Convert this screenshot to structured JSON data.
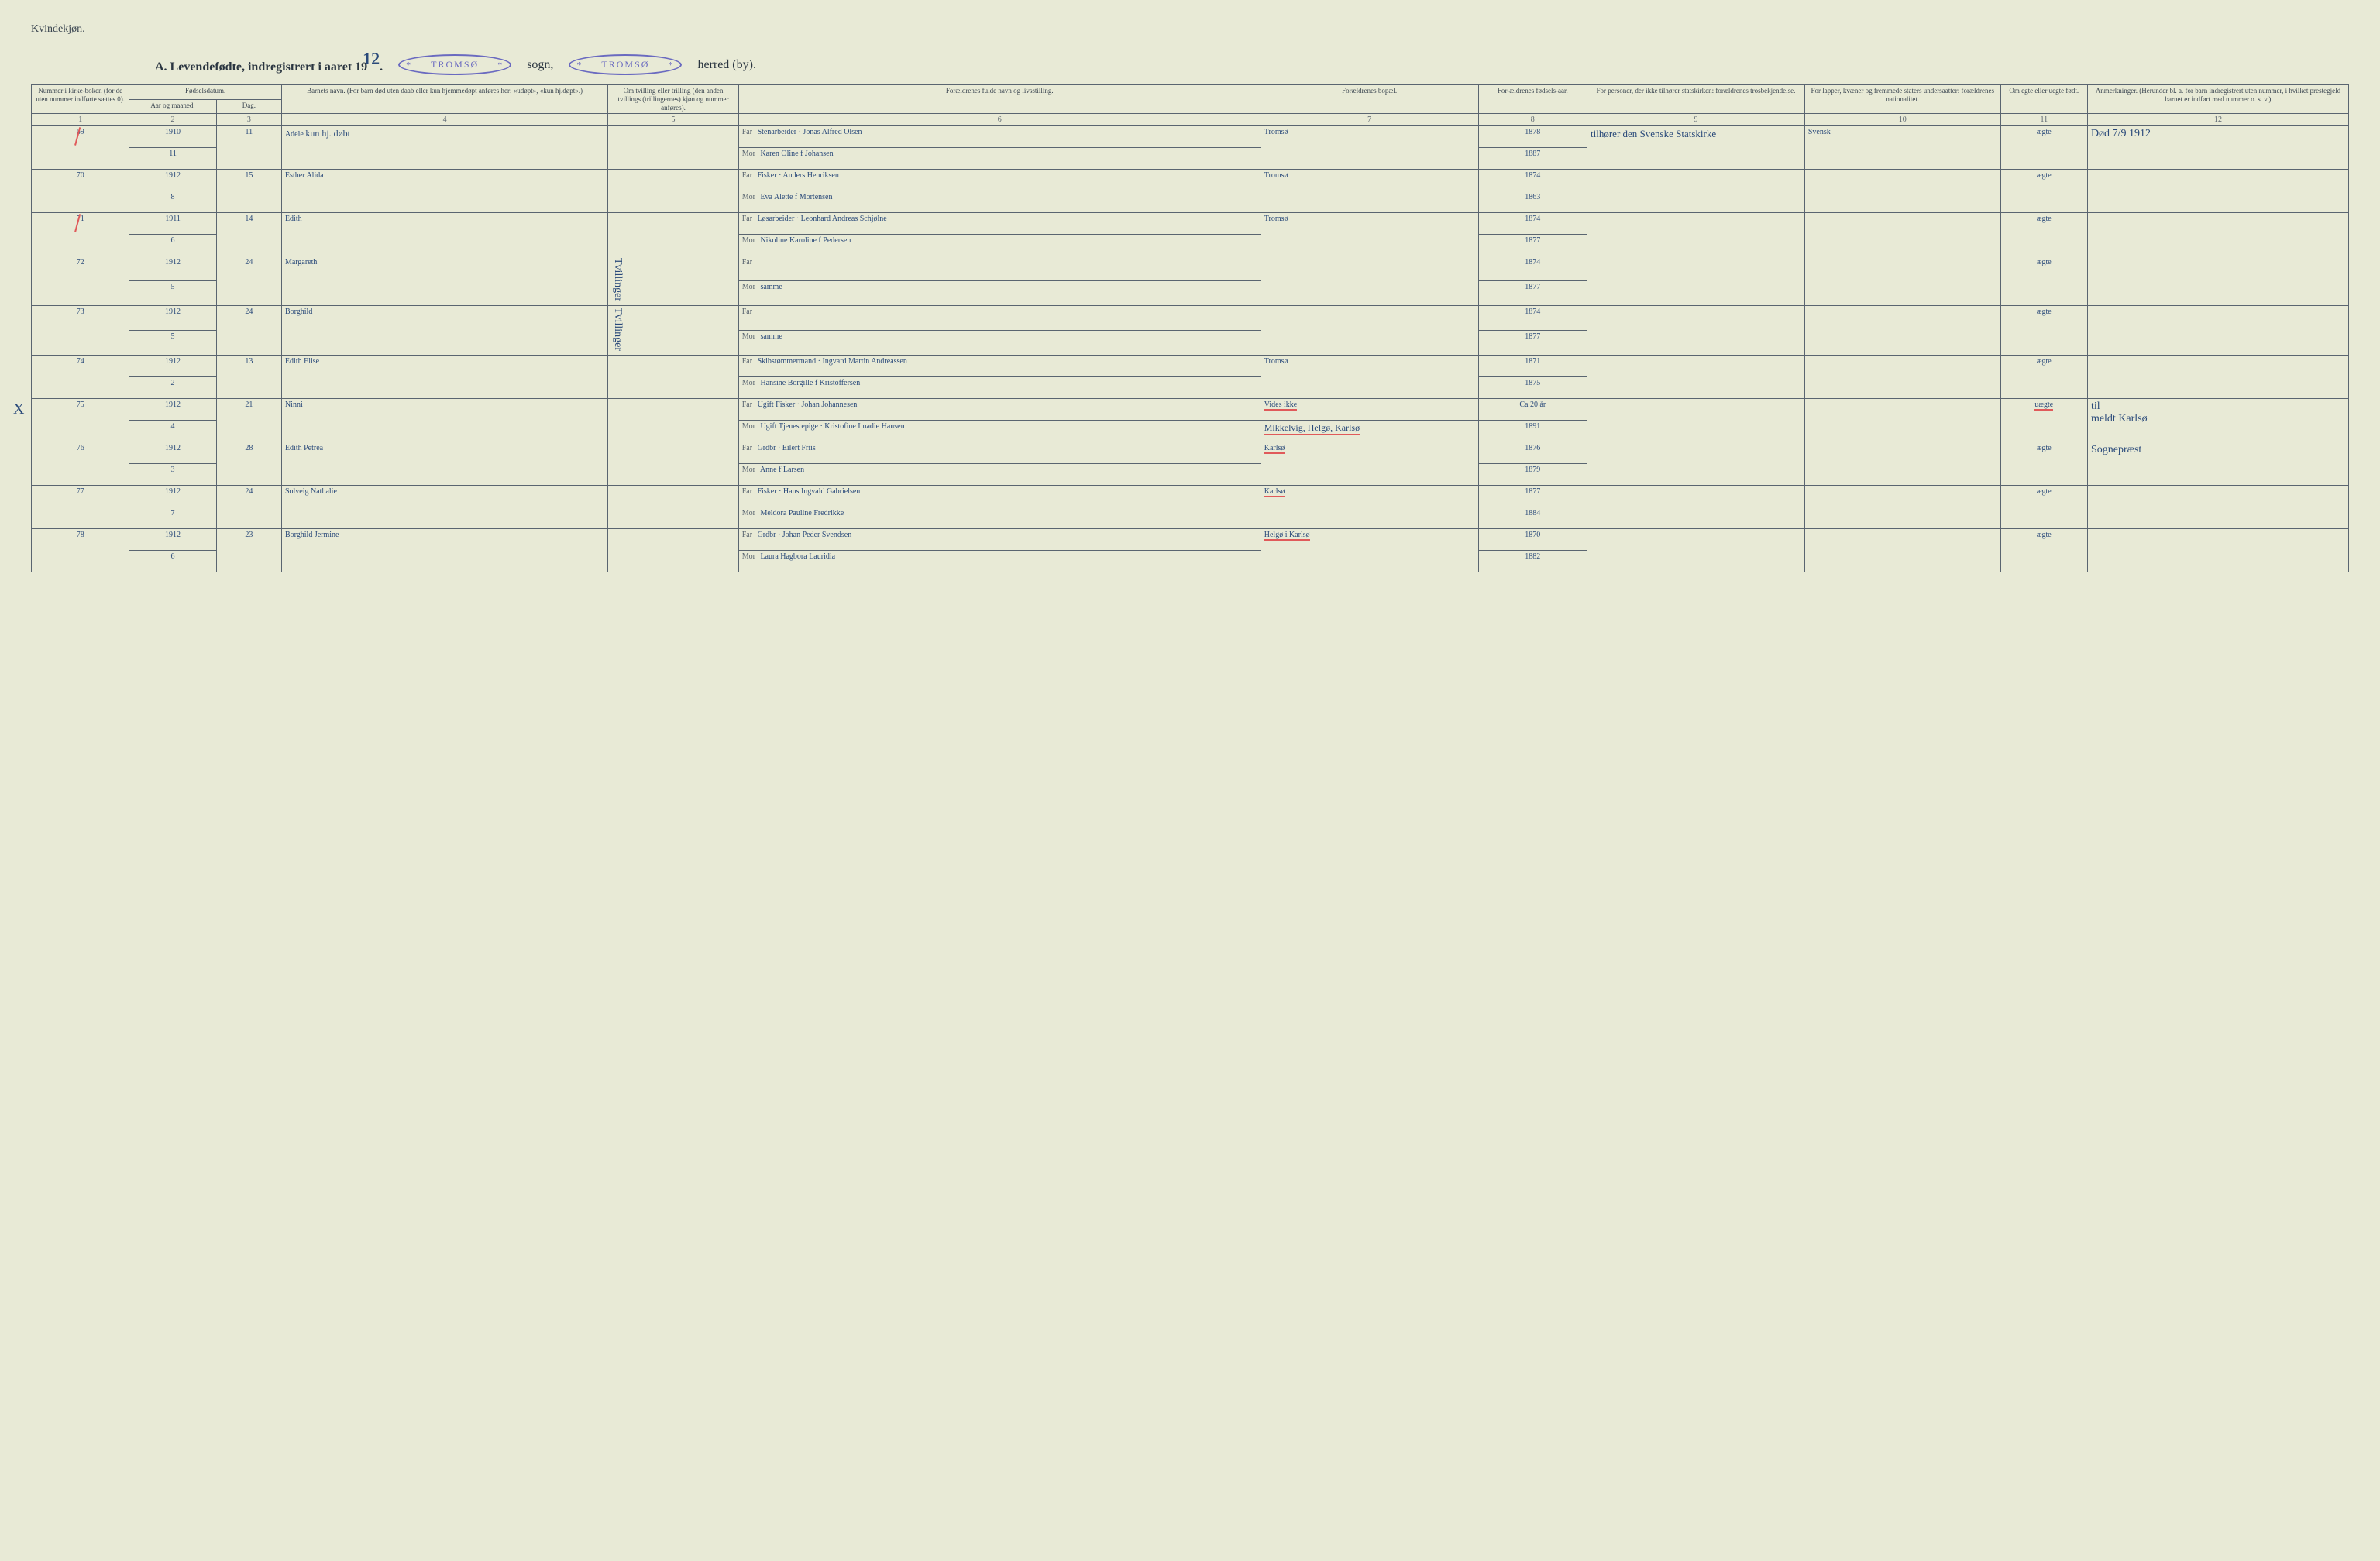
{
  "page": {
    "background_color": "#e8ead6",
    "border_color": "#5a6570",
    "printed_text_color": "#3a4550",
    "handwriting_color": "#2a4a7a",
    "red_mark_color": "#e05a5a",
    "stamp_color": "#6a6ac0"
  },
  "header": {
    "gender_label": "Kvindekjøn.",
    "title_prefix": "A.  Levendefødte, indregistrert i aaret 19",
    "handwritten_year_suffix": "12",
    "title_dot": ".",
    "stamp_text": "TROMSØ",
    "sogn_label": "sogn,",
    "herred_label": "herred (by)."
  },
  "columns": {
    "c1": "Nummer i kirke-boken (for de uten nummer indførte sættes 0).",
    "c2_group": "Fødselsdatum.",
    "c2": "Aar og maaned.",
    "c3": "Dag.",
    "c4": "Barnets navn.\n(For barn død uten daab eller kun hjemmedøpt anføres her: «udøpt», «kun hj.døpt».)",
    "c5": "Om tvilling eller trilling (den anden tvillings (trillingernes) kjøn og nummer anføres).",
    "c6": "Forældrenes fulde navn og livsstilling.",
    "c7": "Forældrenes bopæl.",
    "c8": "For-ældrenes fødsels-aar.",
    "c9": "For personer, der ikke tilhører statskirken: forældrenes trosbekjendelse.",
    "c10": "For lapper, kvæner og fremmede staters undersaatter: forældrenes nationalitet.",
    "c11": "Om egte eller uegte født.",
    "c12": "Anmerkninger.\n(Herunder bl. a. for barn indregistrert uten nummer, i hvilket prestegjeld barnet er indført med nummer o. s. v.)",
    "far_label": "Far",
    "mor_label": "Mor",
    "numbers": [
      "1",
      "2",
      "3",
      "4",
      "5",
      "6",
      "7",
      "8",
      "9",
      "10",
      "11",
      "12"
    ]
  },
  "col_widths_pct": [
    4.5,
    4,
    3,
    15,
    6,
    24,
    10,
    5,
    10,
    9,
    4,
    12
  ],
  "rows": [
    {
      "num": "69",
      "red_tick": true,
      "year": "1910",
      "month": "11",
      "day": "11",
      "name": "Adele",
      "name_note": "kun hj. døbt",
      "far": "Stenarbeider\nJonas Alfred Olsen",
      "mor": "Karen Oline f Johansen",
      "bopel": "Tromsø",
      "far_year": "1878",
      "mor_year": "1887",
      "tros": "tilhører den Svenske Statskirke",
      "nat": "Svensk",
      "egte": "ægte",
      "anm": "Død 7/9 1912"
    },
    {
      "num": "70",
      "year": "1912",
      "month": "8",
      "day": "15",
      "name": "Esther Alida",
      "far": "Fisker\nAnders Henriksen",
      "mor": "Eva Alette f Mortensen",
      "bopel": "Tromsø",
      "far_year": "1874",
      "mor_year": "1863",
      "egte": "ægte"
    },
    {
      "num": "71",
      "red_tick": true,
      "year": "1911",
      "month": "6",
      "day": "14",
      "name": "Edith",
      "far": "Løsarbeider\nLeonhard Andreas Schjølne",
      "mor": "Nikoline Karoline f Pedersen",
      "bopel": "Tromsø",
      "far_year": "1874",
      "mor_year": "1877",
      "egte": "ægte"
    },
    {
      "num": "72",
      "year": "1912",
      "month": "5",
      "day": "24",
      "name": "Margareth",
      "twin_note": "Tvillinger",
      "far": "",
      "mor": "samme",
      "bopel": "",
      "far_year": "1874",
      "mor_year": "1877",
      "egte": "ægte"
    },
    {
      "num": "73",
      "year": "1912",
      "month": "5",
      "day": "24",
      "name": "Borghild",
      "twin_note": "Tvillinger",
      "far": "",
      "mor": "samme",
      "bopel": "",
      "far_year": "1874",
      "mor_year": "1877",
      "egte": "ægte"
    },
    {
      "num": "74",
      "year": "1912",
      "month": "2",
      "day": "13",
      "name": "Edith Elise",
      "far": "Skibstømmermand\nIngvard Martin Andreassen",
      "mor": "Hansine Borgille f Kristoffersen",
      "bopel": "Tromsø",
      "far_year": "1871",
      "mor_year": "1875",
      "egte": "ægte"
    },
    {
      "num": "75",
      "x_mark": true,
      "year": "1912",
      "month": "4",
      "day": "21",
      "name": "Ninni",
      "far": "Ugift Fisker\nJohan Johannesen",
      "mor": "Ugift Tjenestepige\nKristofine Luadie Hansen",
      "bopel": "Vides ikke",
      "bopel_mor": "Mikkelvig, Helgø, Karlsø",
      "bopel_red": true,
      "far_year": "Ca 20 år",
      "mor_year": "1891",
      "egte": "uægte",
      "egte_red": true,
      "anm": "til\nmeldt Karlsø"
    },
    {
      "num": "76",
      "year": "1912",
      "month": "3",
      "day": "28",
      "name": "Edith Petrea",
      "far": "Grdbr\nEilert Friis",
      "mor": "Anne f Larsen",
      "bopel": "Karlsø",
      "bopel_red": true,
      "far_year": "1876",
      "mor_year": "1879",
      "egte": "ægte",
      "anm": "Sognepræst"
    },
    {
      "num": "77",
      "year": "1912",
      "month": "7",
      "day": "24",
      "name": "Solveig Nathalie",
      "far": "Fisker\nHans Ingvald Gabrielsen",
      "mor": "Meldora Pauline Fredrikke",
      "bopel": "Karlsø",
      "bopel_red": true,
      "far_year": "1877",
      "mor_year": "1884",
      "egte": "ægte"
    },
    {
      "num": "78",
      "year": "1912",
      "month": "6",
      "day": "23",
      "name": "Borghild Jermine",
      "far": "Grdbr\nJohan Peder Svendsen",
      "mor": "Laura Hagbora Lauridia",
      "bopel": "Helgø i Karlsø",
      "bopel_red": true,
      "far_year": "1870",
      "mor_year": "1882",
      "egte": "ægte"
    }
  ]
}
